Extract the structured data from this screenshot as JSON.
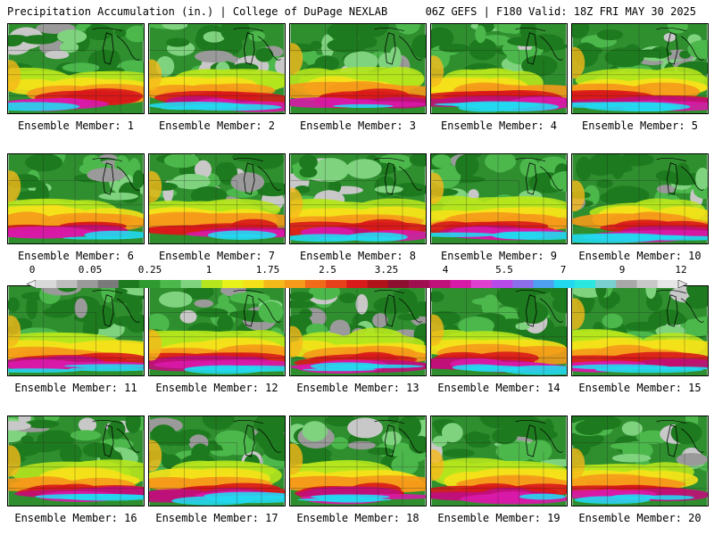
{
  "header": {
    "title_left": "Precipitation Accumulation (in.) | College of DuPage NEXLAB",
    "title_right": "06Z GEFS | F180 Valid: 18Z FRI MAY 30 2025"
  },
  "members": [
    {
      "label": "Ensemble Member: 1"
    },
    {
      "label": "Ensemble Member: 2"
    },
    {
      "label": "Ensemble Member: 3"
    },
    {
      "label": "Ensemble Member: 4"
    },
    {
      "label": "Ensemble Member: 5"
    },
    {
      "label": "Ensemble Member: 6"
    },
    {
      "label": "Ensemble Member: 7"
    },
    {
      "label": "Ensemble Member: 8"
    },
    {
      "label": "Ensemble Member: 9"
    },
    {
      "label": "Ensemble Member: 10"
    },
    {
      "label": "Ensemble Member: 11"
    },
    {
      "label": "Ensemble Member: 12"
    },
    {
      "label": "Ensemble Member: 13"
    },
    {
      "label": "Ensemble Member: 14"
    },
    {
      "label": "Ensemble Member: 15"
    },
    {
      "label": "Ensemble Member: 16"
    },
    {
      "label": "Ensemble Member: 17"
    },
    {
      "label": "Ensemble Member: 18"
    },
    {
      "label": "Ensemble Member: 19"
    },
    {
      "label": "Ensemble Member: 20"
    }
  ],
  "colorbar": {
    "labels": [
      "0",
      "0.05",
      "0.25",
      "1",
      "1.75",
      "2.5",
      "3.25",
      "4",
      "5.5",
      "7",
      "9",
      "12"
    ],
    "colors": [
      "#d9d9d9",
      "#bdbdbd",
      "#9a9a9a",
      "#7a7a7a",
      "#1e7a1e",
      "#2f9a2f",
      "#4cb84c",
      "#7fd37f",
      "#b5e61d",
      "#e6f21a",
      "#f5e11a",
      "#f5b91a",
      "#f59a1a",
      "#f06a1a",
      "#e8401a",
      "#d81a1a",
      "#b0141a",
      "#8e1030",
      "#a01050",
      "#c0107a",
      "#d81aa8",
      "#e040d0",
      "#b84ae8",
      "#8c6ee8",
      "#4fa0f0",
      "#22d8f0",
      "#2ae8e0",
      "#7ad0d0",
      "#a8a8a8",
      "#c8c8c8",
      "#e6e6e6"
    ]
  }
}
